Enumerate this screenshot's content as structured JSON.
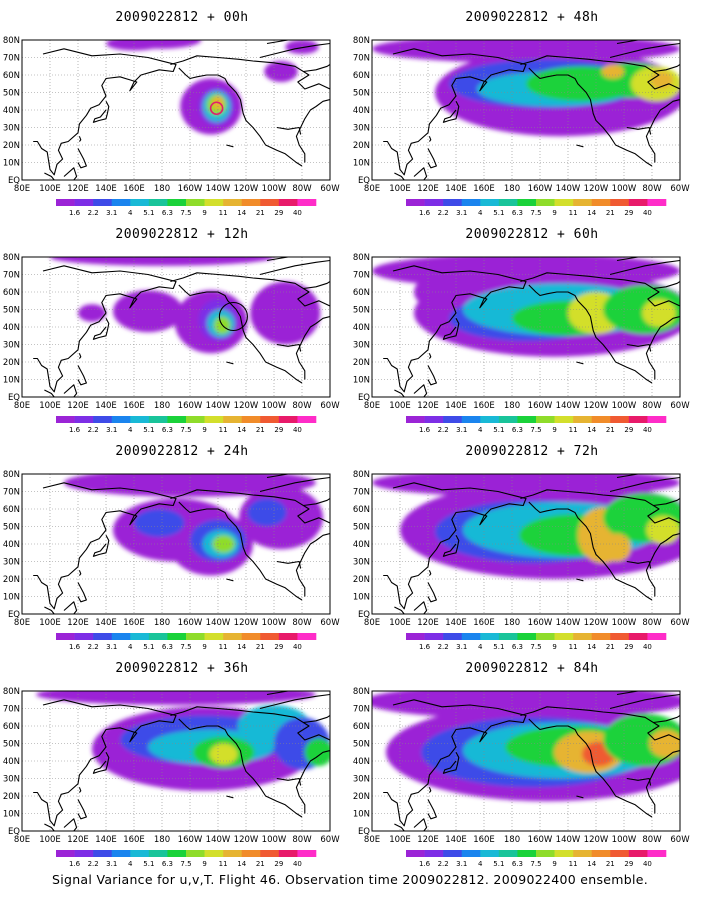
{
  "colorbar": {
    "levels": [
      "1.6",
      "2.2",
      "3.1",
      "4",
      "5.1",
      "6.3",
      "7.5",
      "9",
      "11",
      "14",
      "21",
      "29",
      "40"
    ],
    "colors": [
      "#9b24d6",
      "#7d2ee6",
      "#3e4be8",
      "#1a84ee",
      "#19b9d6",
      "#19c49a",
      "#1ad23a",
      "#8fdc2a",
      "#d3df2c",
      "#e6b432",
      "#f18c2a",
      "#f05a32",
      "#e81a6a",
      "#ff2cc8"
    ]
  },
  "x_ticks": [
    "80E",
    "100E",
    "120E",
    "140E",
    "160E",
    "180",
    "160W",
    "140W",
    "120W",
    "100W",
    "80W",
    "60W"
  ],
  "y_ticks": [
    "EQ",
    "10N",
    "20N",
    "30N",
    "40N",
    "50N",
    "60N",
    "70N",
    "80N"
  ],
  "panels": [
    {
      "title": "2009022812 + 00h",
      "lead_hours": 0
    },
    {
      "title": "2009022812 + 48h",
      "lead_hours": 48
    },
    {
      "title": "2009022812 + 12h",
      "lead_hours": 12
    },
    {
      "title": "2009022812 + 60h",
      "lead_hours": 60
    },
    {
      "title": "2009022812 + 24h",
      "lead_hours": 24
    },
    {
      "title": "2009022812 + 72h",
      "lead_hours": 72
    },
    {
      "title": "2009022812 + 36h",
      "lead_hours": 36
    },
    {
      "title": "2009022812 + 84h",
      "lead_hours": 84
    }
  ],
  "footer": "Signal Variance for u,v,T. Flight 46. Observation time 2009022812. 2009022400 ensemble."
}
